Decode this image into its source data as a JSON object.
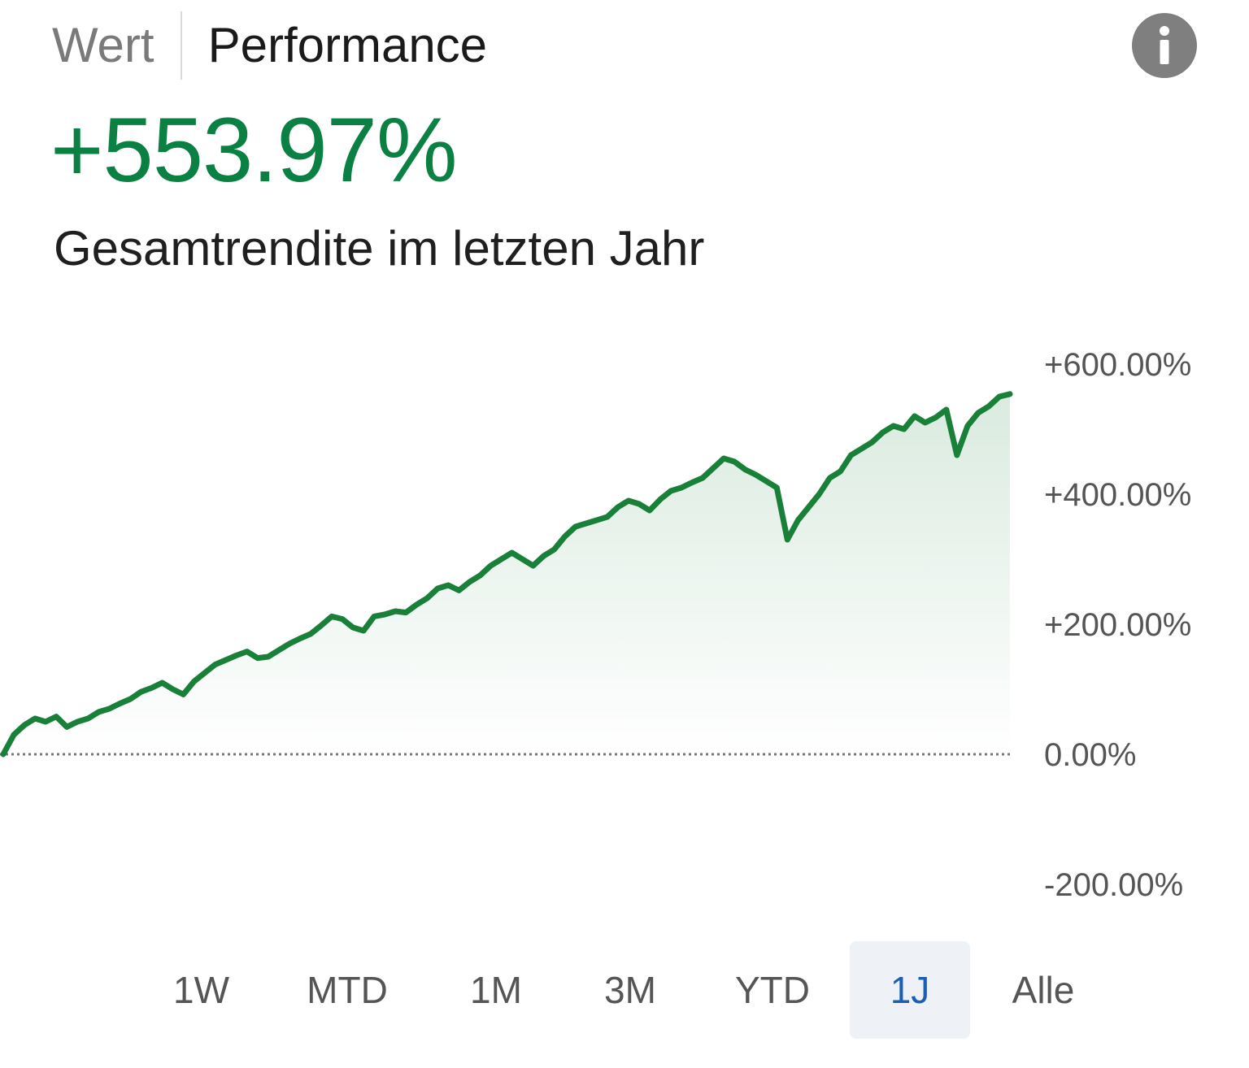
{
  "tabs": [
    {
      "label": "Wert",
      "active": false
    },
    {
      "label": "Performance",
      "active": true
    }
  ],
  "info_icon": "info-icon",
  "headline": {
    "value": "+553.97%",
    "caption": "Gesamtrendite im letzten Jahr"
  },
  "colors": {
    "positive": "#0b8043",
    "line": "#188038",
    "selected_range_text": "#1a5fb4",
    "selected_range_bg": "#eef1f5"
  },
  "chart_data": {
    "type": "area",
    "y_ticks": [
      "+600.00%",
      "+400.00%",
      "+200.00%",
      "0.00%",
      "-200.00%"
    ],
    "ylim": [
      -200,
      600
    ],
    "baseline": 0,
    "series": [
      {
        "values": [
          0,
          30,
          45,
          55,
          50,
          58,
          42,
          50,
          55,
          65,
          70,
          78,
          85,
          96,
          102,
          110,
          100,
          92,
          112,
          125,
          138,
          145,
          152,
          158,
          148,
          150,
          160,
          170,
          178,
          185,
          198,
          212,
          208,
          195,
          190,
          212,
          215,
          220,
          218,
          230,
          240,
          255,
          260,
          252,
          265,
          275,
          290,
          300,
          310,
          300,
          290,
          305,
          315,
          335,
          350,
          355,
          360,
          365,
          380,
          390,
          385,
          375,
          392,
          405,
          410,
          418,
          425,
          440,
          455,
          450,
          438,
          430,
          420,
          410,
          330,
          360,
          380,
          400,
          425,
          435,
          460,
          470,
          480,
          495,
          505,
          500,
          520,
          510,
          518,
          530,
          460,
          505,
          525,
          535,
          550,
          553.97
        ]
      }
    ]
  },
  "ranges": [
    {
      "label": "1W",
      "selected": false
    },
    {
      "label": "MTD",
      "selected": false
    },
    {
      "label": "1M",
      "selected": false
    },
    {
      "label": "3M",
      "selected": false
    },
    {
      "label": "YTD",
      "selected": false
    },
    {
      "label": "1J",
      "selected": true
    },
    {
      "label": "Alle",
      "selected": false
    }
  ]
}
